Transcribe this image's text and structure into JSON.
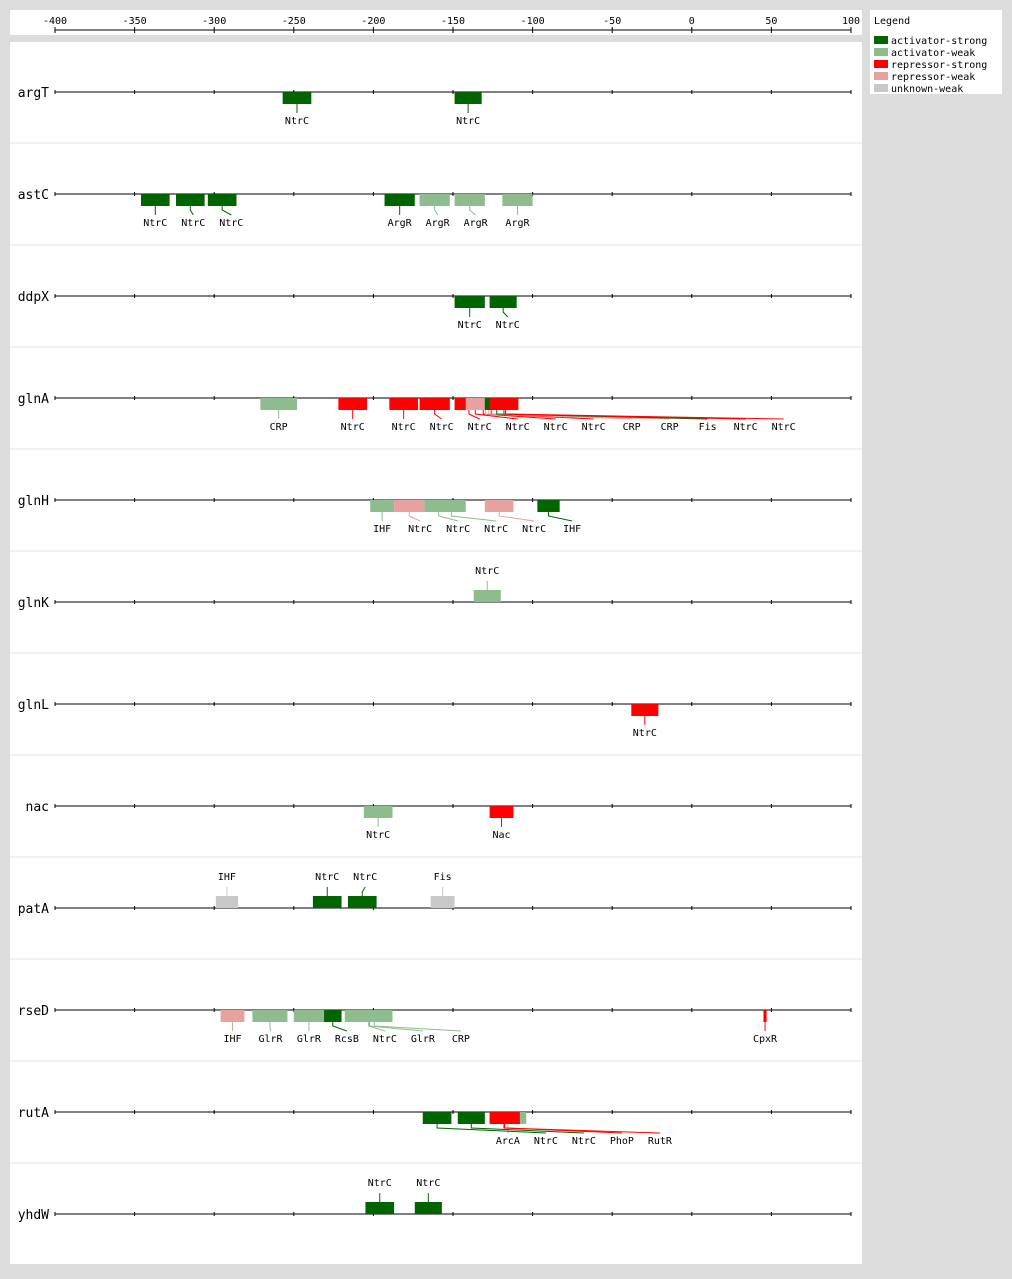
{
  "axis": {
    "xlim": [
      -400,
      100
    ],
    "xticks": [
      -400,
      -350,
      -300,
      -250,
      -200,
      -150,
      -100,
      -50,
      0,
      50,
      100
    ]
  },
  "legend": {
    "title": "Legend",
    "items": [
      {
        "label": "activator-strong",
        "color": "#006400"
      },
      {
        "label": "activator-weak",
        "color": "#8fbc8f"
      },
      {
        "label": "repressor-strong",
        "color": "#ff0000"
      },
      {
        "label": "repressor-weak",
        "color": "#e6a1a1"
      },
      {
        "label": "unknown-weak",
        "color": "#c8c8c8"
      }
    ]
  },
  "tracks": [
    {
      "gene": "argT",
      "label_side": "below",
      "sites": [
        {
          "label": "NtrC",
          "start": -257,
          "end": -239,
          "type": "activator-strong"
        },
        {
          "label": "NtrC",
          "start": -149,
          "end": -132,
          "type": "activator-strong"
        }
      ]
    },
    {
      "gene": "astC",
      "label_side": "below",
      "sites": [
        {
          "label": "NtrC",
          "start": -346,
          "end": -328,
          "type": "activator-strong"
        },
        {
          "label": "NtrC",
          "start": -324,
          "end": -306,
          "type": "activator-strong"
        },
        {
          "label": "NtrC",
          "start": -304,
          "end": -286,
          "type": "activator-strong"
        },
        {
          "label": "ArgR",
          "start": -193,
          "end": -174,
          "type": "activator-strong"
        },
        {
          "label": "ArgR",
          "start": -171,
          "end": -152,
          "type": "activator-weak"
        },
        {
          "label": "ArgR",
          "start": -149,
          "end": -130,
          "type": "activator-weak"
        },
        {
          "label": "ArgR",
          "start": -119,
          "end": -100,
          "type": "activator-weak"
        }
      ]
    },
    {
      "gene": "ddpX",
      "label_side": "below",
      "sites": [
        {
          "label": "NtrC",
          "start": -149,
          "end": -130,
          "type": "activator-strong"
        },
        {
          "label": "NtrC",
          "start": -127,
          "end": -110,
          "type": "activator-strong"
        }
      ]
    },
    {
      "gene": "glnA",
      "label_side": "below",
      "sites": [
        {
          "label": "CRP",
          "start": -271,
          "end": -248,
          "type": "activator-weak"
        },
        {
          "label": "NtrC",
          "start": -222,
          "end": -204,
          "type": "repressor-strong"
        },
        {
          "label": "NtrC",
          "start": -190,
          "end": -172,
          "type": "repressor-strong"
        },
        {
          "label": "NtrC",
          "start": -171,
          "end": -152,
          "type": "repressor-strong"
        },
        {
          "label": "NtrC",
          "start": -149,
          "end": -131,
          "type": "repressor-strong"
        },
        {
          "label": "NtrC",
          "start": -145,
          "end": -127,
          "type": "repressor-strong"
        },
        {
          "label": "NtrC",
          "start": -140,
          "end": -122,
          "type": "repressor-strong"
        },
        {
          "label": "NtrC",
          "start": -135,
          "end": -117,
          "type": "repressor-strong"
        },
        {
          "label": "CRP",
          "start": -142,
          "end": -117,
          "type": "repressor-weak"
        },
        {
          "label": "CRP",
          "start": -138,
          "end": -117,
          "type": "repressor-weak"
        },
        {
          "label": "Fis",
          "start": -130,
          "end": -115,
          "type": "activator-strong"
        },
        {
          "label": "NtrC",
          "start": -127,
          "end": -109,
          "type": "repressor-strong"
        },
        {
          "label": "NtrC",
          "start": -125,
          "end": -109,
          "type": "repressor-strong"
        }
      ]
    },
    {
      "gene": "glnH",
      "label_side": "below",
      "sites": [
        {
          "label": "IHF",
          "start": -202,
          "end": -187,
          "type": "activator-weak"
        },
        {
          "label": "NtrC",
          "start": -187,
          "end": -168,
          "type": "repressor-weak"
        },
        {
          "label": "NtrC",
          "start": -168,
          "end": -150,
          "type": "activator-weak"
        },
        {
          "label": "NtrC",
          "start": -160,
          "end": -142,
          "type": "activator-weak"
        },
        {
          "label": "NtrC",
          "start": -130,
          "end": -112,
          "type": "repressor-weak"
        },
        {
          "label": "IHF",
          "start": -97,
          "end": -83,
          "type": "activator-strong"
        }
      ]
    },
    {
      "gene": "glnK",
      "label_side": "above",
      "sites": [
        {
          "label": "NtrC",
          "start": -137,
          "end": -120,
          "type": "activator-weak"
        }
      ]
    },
    {
      "gene": "glnL",
      "label_side": "below",
      "sites": [
        {
          "label": "NtrC",
          "start": -38,
          "end": -21,
          "type": "repressor-strong"
        }
      ]
    },
    {
      "gene": "nac",
      "label_side": "below",
      "sites": [
        {
          "label": "NtrC",
          "start": -206,
          "end": -188,
          "type": "activator-weak"
        },
        {
          "label": "Nac",
          "start": -127,
          "end": -112,
          "type": "repressor-strong"
        }
      ]
    },
    {
      "gene": "patA",
      "label_side": "above",
      "sites": [
        {
          "label": "IHF",
          "start": -299,
          "end": -285,
          "type": "unknown-weak"
        },
        {
          "label": "NtrC",
          "start": -238,
          "end": -220,
          "type": "activator-strong"
        },
        {
          "label": "NtrC",
          "start": -216,
          "end": -198,
          "type": "activator-strong"
        },
        {
          "label": "Fis",
          "start": -164,
          "end": -149,
          "type": "unknown-weak"
        }
      ]
    },
    {
      "gene": "rseD",
      "label_side": "below",
      "sites": [
        {
          "label": "IHF",
          "start": -296,
          "end": -281,
          "type": "repressor-weak"
        },
        {
          "label": "GlrR",
          "start": -276,
          "end": -254,
          "type": "activator-weak"
        },
        {
          "label": "GlrR",
          "start": -250,
          "end": -231,
          "type": "activator-weak"
        },
        {
          "label": "RcsB",
          "start": -231,
          "end": -220,
          "type": "activator-strong"
        },
        {
          "label": "NtrC",
          "start": -218,
          "end": -188,
          "type": "activator-weak"
        },
        {
          "label": "GlrR",
          "start": -212,
          "end": -193,
          "type": "activator-weak"
        },
        {
          "label": "CRP",
          "start": -210,
          "end": -189,
          "type": "activator-weak"
        },
        {
          "label": "CpxR",
          "start": 45,
          "end": 47,
          "type": "repressor-strong"
        }
      ]
    },
    {
      "gene": "rutA",
      "label_side": "below",
      "sites": [
        {
          "label": "ArcA",
          "start": -127,
          "end": -104,
          "type": "activator-weak"
        },
        {
          "label": "NtrC",
          "start": -169,
          "end": -151,
          "type": "activator-strong"
        },
        {
          "label": "NtrC",
          "start": -147,
          "end": -130,
          "type": "activator-strong"
        },
        {
          "label": "PhoP",
          "start": -127,
          "end": -108,
          "type": "repressor-strong"
        },
        {
          "label": "RutR",
          "start": -126,
          "end": -110,
          "type": "repressor-strong"
        }
      ]
    },
    {
      "gene": "yhdW",
      "label_side": "above",
      "sites": [
        {
          "label": "NtrC",
          "start": -205,
          "end": -187,
          "type": "activator-strong"
        },
        {
          "label": "NtrC",
          "start": -174,
          "end": -157,
          "type": "activator-strong"
        }
      ]
    }
  ]
}
